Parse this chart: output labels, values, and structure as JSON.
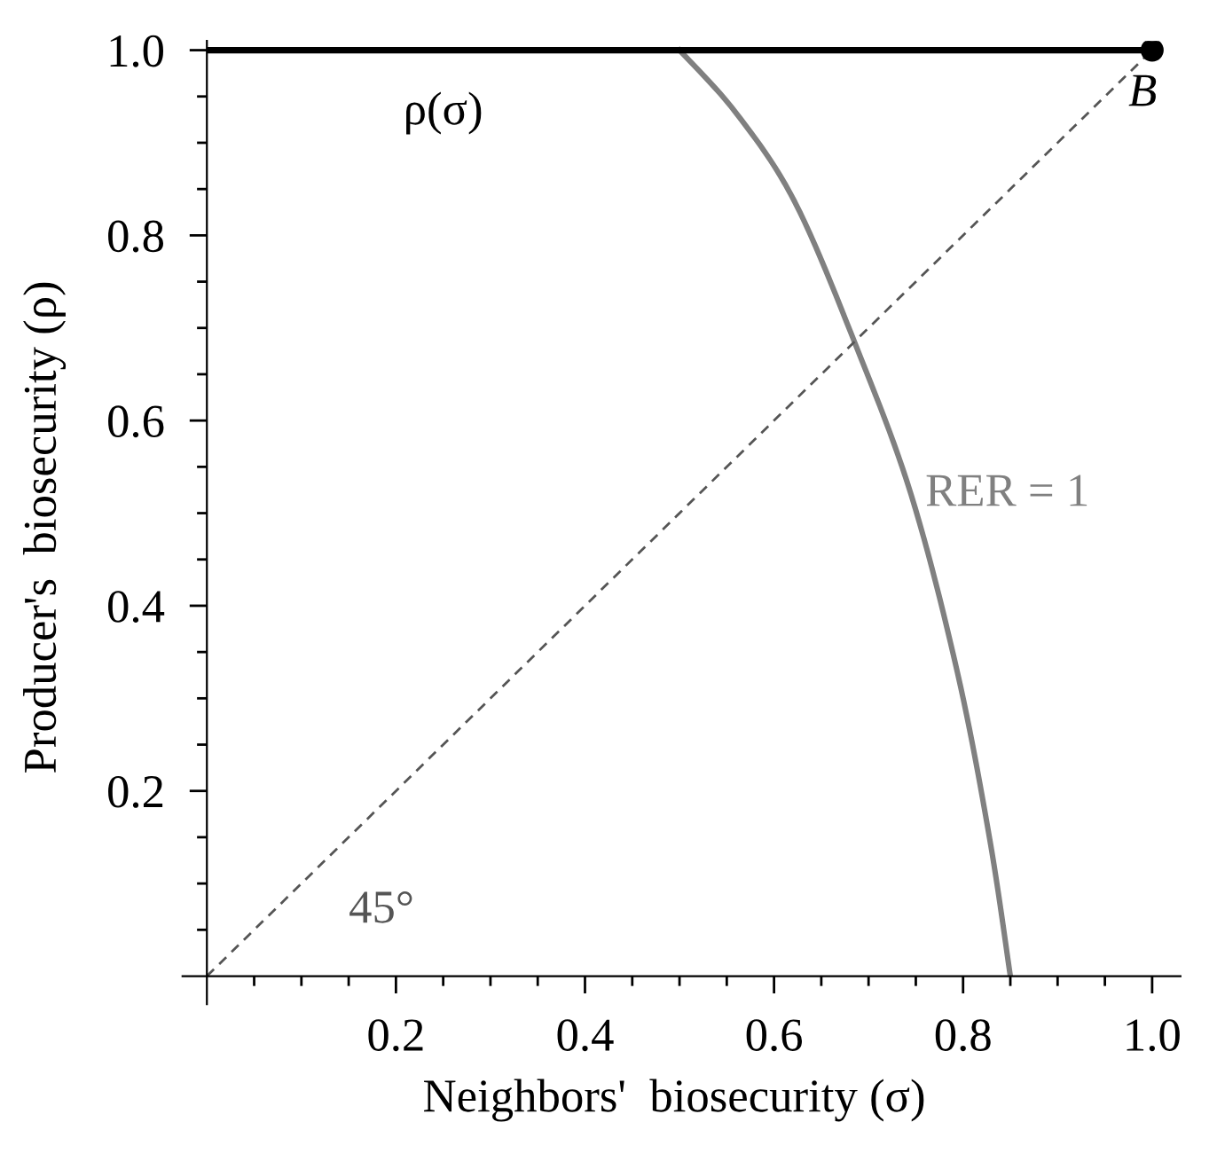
{
  "chart_data": {
    "type": "line",
    "xlabel": "Neighbors'  biosecurity (σ)",
    "ylabel": "Producer's  biosecurity (ρ)",
    "xlim": [
      0,
      1.03
    ],
    "ylim": [
      0,
      1.01
    ],
    "xticks": [
      {
        "value": 0.05,
        "label": null
      },
      {
        "value": 0.1,
        "label": null
      },
      {
        "value": 0.15,
        "label": null
      },
      0.2,
      {
        "value": 0.25,
        "label": null
      },
      {
        "value": 0.3,
        "label": null
      },
      {
        "value": 0.35,
        "label": null
      },
      0.4,
      {
        "value": 0.45,
        "label": null
      },
      {
        "value": 0.5,
        "label": null
      },
      {
        "value": 0.55,
        "label": null
      },
      0.6,
      {
        "value": 0.65,
        "label": null
      },
      {
        "value": 0.7,
        "label": null
      },
      {
        "value": 0.75,
        "label": null
      },
      0.8,
      {
        "value": 0.85,
        "label": null
      },
      {
        "value": 0.9,
        "label": null
      },
      {
        "value": 0.95,
        "label": null
      },
      {
        "value": 1,
        "label": "1.0"
      }
    ],
    "yticks": [
      {
        "value": 0.05,
        "label": null
      },
      {
        "value": 0.1,
        "label": null
      },
      {
        "value": 0.15,
        "label": null
      },
      0.2,
      {
        "value": 0.25,
        "label": null
      },
      {
        "value": 0.3,
        "label": null
      },
      {
        "value": 0.35,
        "label": null
      },
      0.4,
      {
        "value": 0.45,
        "label": null
      },
      {
        "value": 0.5,
        "label": null
      },
      {
        "value": 0.55,
        "label": null
      },
      0.6,
      {
        "value": 0.65,
        "label": null
      },
      {
        "value": 0.7,
        "label": null
      },
      {
        "value": 0.75,
        "label": null
      },
      0.8,
      {
        "value": 0.85,
        "label": null
      },
      {
        "value": 0.9,
        "label": null
      },
      {
        "value": 0.95,
        "label": null
      },
      {
        "value": 1,
        "label": "1.0"
      }
    ],
    "grid": false,
    "legend": false,
    "series": [
      {
        "name": "ρ(σ)",
        "color": "#000000",
        "line_style": "solid",
        "x": [
          0,
          1
        ],
        "values": [
          1,
          1
        ]
      },
      {
        "name": "RER = 1",
        "color": "#808080",
        "line_style": "solid",
        "x": [
          0.5,
          0.56,
          0.622,
          0.687,
          0.745,
          0.794,
          0.828,
          0.85
        ],
        "values": [
          1,
          0.932,
          0.836,
          0.68,
          0.52,
          0.328,
          0.149,
          0
        ]
      },
      {
        "name": "45°",
        "color": "#555555",
        "line_style": "dashed",
        "x": [
          0,
          1
        ],
        "values": [
          0,
          1
        ]
      },
      {
        "name": "B",
        "color": "#000000",
        "type": "scatter",
        "marker": "circle",
        "x": [
          1
        ],
        "values": [
          1
        ]
      }
    ]
  }
}
